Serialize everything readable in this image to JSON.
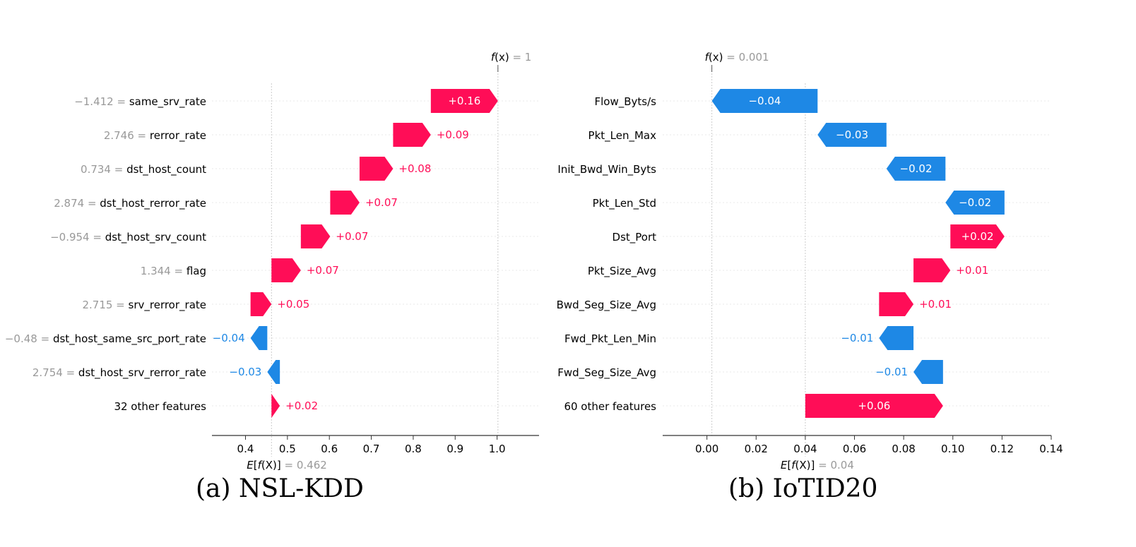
{
  "colors": {
    "positive": "#ff0d57",
    "negative": "#1e88e5",
    "grid": "#cccccc",
    "muted": "#999999",
    "text": "#000000"
  },
  "chart_data": [
    {
      "type": "waterfall",
      "caption": "(a) NSL-KDD",
      "base": 0.462,
      "base_label": "= 0.462",
      "fx_label": "= 1",
      "xlim": [
        0.32,
        1.1
      ],
      "ticks": [
        0.4,
        0.5,
        0.6,
        0.7,
        0.8,
        0.9,
        1.0
      ],
      "tick_labels": [
        "0.4",
        "0.5",
        "0.6",
        "0.7",
        "0.8",
        "0.9",
        "1.0"
      ],
      "features": [
        {
          "value": "−1.412 =",
          "name": "same_srv_rate",
          "contribution": 0.16,
          "label": "+0.16"
        },
        {
          "value": "2.746 =",
          "name": "rerror_rate",
          "contribution": 0.09,
          "label": "+0.09"
        },
        {
          "value": "0.734 =",
          "name": "dst_host_count",
          "contribution": 0.08,
          "label": "+0.08"
        },
        {
          "value": "2.874 =",
          "name": "dst_host_rerror_rate",
          "contribution": 0.07,
          "label": "+0.07"
        },
        {
          "value": "−0.954 =",
          "name": "dst_host_srv_count",
          "contribution": 0.07,
          "label": "+0.07"
        },
        {
          "value": "1.344 =",
          "name": "flag",
          "contribution": 0.07,
          "label": "+0.07"
        },
        {
          "value": "2.715 =",
          "name": "srv_rerror_rate",
          "contribution": 0.05,
          "label": "+0.05"
        },
        {
          "value": "−0.48 =",
          "name": "dst_host_same_src_port_rate",
          "contribution": -0.04,
          "label": "−0.04"
        },
        {
          "value": "2.754 =",
          "name": "dst_host_srv_rerror_rate",
          "contribution": -0.03,
          "label": "−0.03"
        },
        {
          "value": "",
          "name": "32 other features",
          "contribution": 0.02,
          "label": "+0.02"
        }
      ]
    },
    {
      "type": "waterfall",
      "caption": "(b) IoTID20",
      "base": 0.04,
      "base_label": "= 0.04",
      "fx_label": "= 0.001",
      "xlim": [
        -0.018,
        0.14
      ],
      "ticks": [
        0.0,
        0.02,
        0.04,
        0.06,
        0.08,
        0.1,
        0.12,
        0.14
      ],
      "tick_labels": [
        "0.00",
        "0.02",
        "0.04",
        "0.06",
        "0.08",
        "0.10",
        "0.12",
        "0.14"
      ],
      "features": [
        {
          "value": "",
          "name": "Flow_Byts/s",
          "contribution": -0.043,
          "label": "−0.04"
        },
        {
          "value": "",
          "name": "Pkt_Len_Max",
          "contribution": -0.028,
          "label": "−0.03"
        },
        {
          "value": "",
          "name": "Init_Bwd_Win_Byts",
          "contribution": -0.024,
          "label": "−0.02"
        },
        {
          "value": "",
          "name": "Pkt_Len_Std",
          "contribution": -0.024,
          "label": "−0.02"
        },
        {
          "value": "",
          "name": "Dst_Port",
          "contribution": 0.022,
          "label": "+0.02"
        },
        {
          "value": "",
          "name": "Pkt_Size_Avg",
          "contribution": 0.015,
          "label": "+0.01"
        },
        {
          "value": "",
          "name": "Bwd_Seg_Size_Avg",
          "contribution": 0.014,
          "label": "+0.01"
        },
        {
          "value": "",
          "name": "Fwd_Pkt_Len_Min",
          "contribution": -0.014,
          "label": "−0.01"
        },
        {
          "value": "",
          "name": "Fwd_Seg_Size_Avg",
          "contribution": -0.012,
          "label": "−0.01"
        },
        {
          "value": "",
          "name": "60 other features",
          "contribution": 0.056,
          "label": "+0.06"
        }
      ]
    }
  ]
}
